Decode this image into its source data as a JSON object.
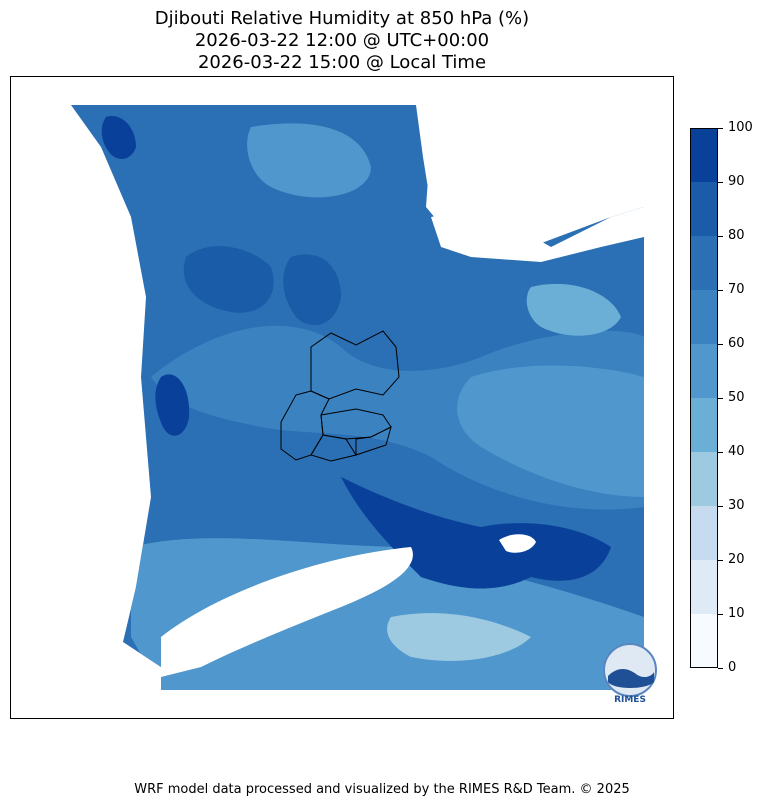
{
  "title": {
    "line1": "Djibouti Relative Humidity at 850 hPa (%)",
    "line2": "2026-03-22 12:00 @ UTC+00:00",
    "line3": "2026-03-22 15:00 @ Local Time"
  },
  "chart_data": {
    "type": "heatmap",
    "variable": "Relative Humidity at 850 hPa",
    "unit": "%",
    "colorbar": {
      "levels": [
        0,
        10,
        20,
        30,
        40,
        50,
        60,
        70,
        80,
        90,
        100
      ],
      "tick_labels": [
        "0",
        "10",
        "20",
        "30",
        "40",
        "50",
        "60",
        "70",
        "80",
        "90",
        "100"
      ],
      "colors": [
        "#f7fbff",
        "#deebf7",
        "#c6dbef",
        "#9ecae1",
        "#6baed6",
        "#4f97cc",
        "#3a82c0",
        "#2b6fb4",
        "#1a5ca7",
        "#08409a"
      ]
    },
    "legend_position": "right"
  },
  "colors": {
    "land_mask": "#ffffff",
    "border_line": "#000000"
  },
  "logo": {
    "text": "RIMES"
  },
  "footer": "WRF model data processed and visualized by the RIMES R&D Team. © 2025"
}
